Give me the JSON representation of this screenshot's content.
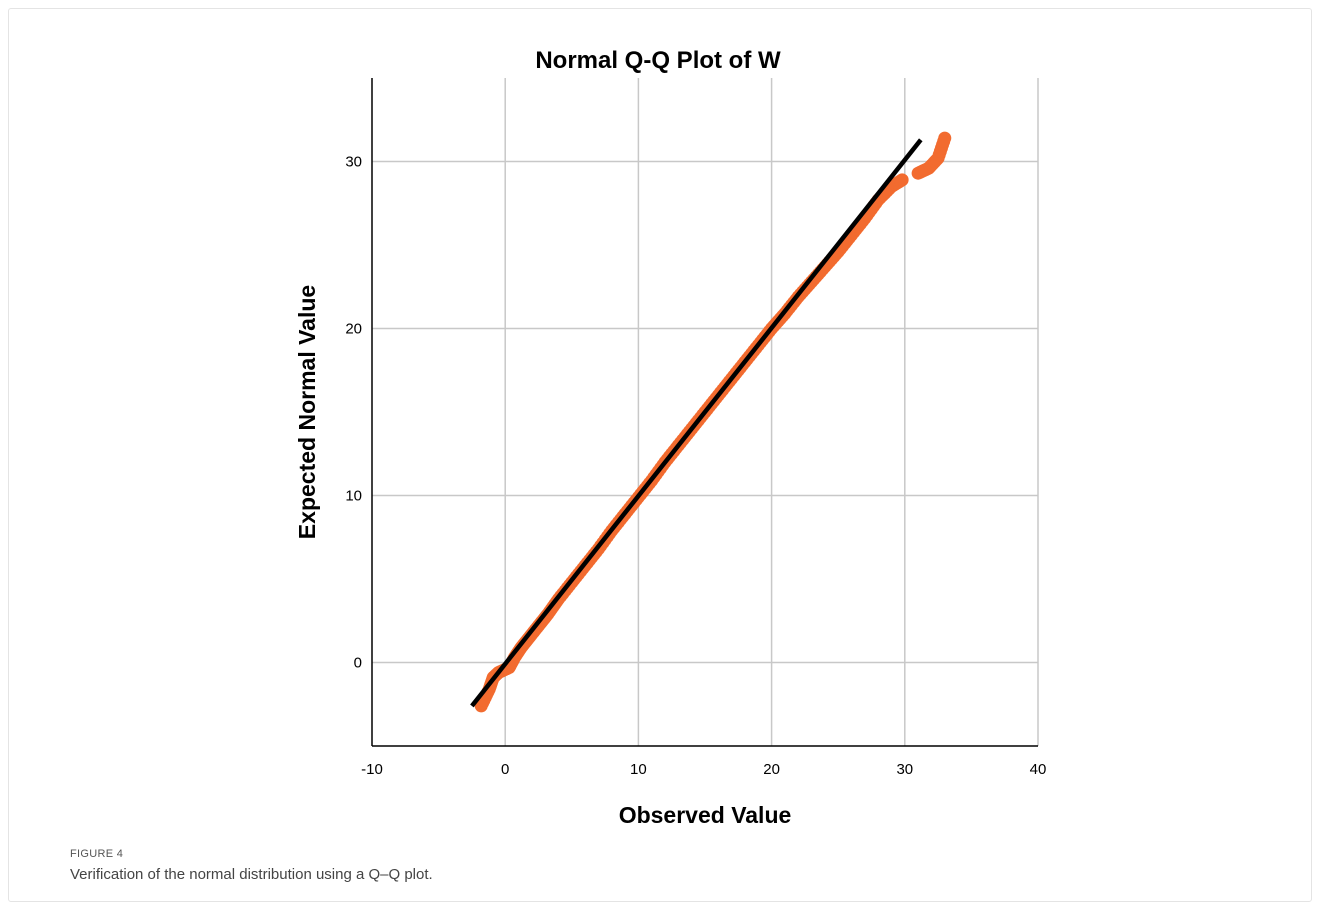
{
  "figure": {
    "label": "FIGURE 4",
    "caption": "Verification of the normal distribution using a Q–Q plot."
  },
  "chart_data": {
    "type": "scatter",
    "title": "Normal Q-Q Plot of W",
    "xlabel": "Observed Value",
    "ylabel": "Expected Normal Value",
    "xlim": [
      -10,
      40
    ],
    "ylim": [
      -5,
      35
    ],
    "x_ticks": [
      -10,
      0,
      10,
      20,
      30,
      40
    ],
    "y_ticks": [
      0,
      10,
      20,
      30
    ],
    "grid": true,
    "colors": {
      "points": "#f26b2f",
      "line": "#000000",
      "grid": "#c8c8c8"
    },
    "reference_line": {
      "from": [
        -2.5,
        -2.6
      ],
      "to": [
        31.2,
        31.3
      ]
    },
    "series": [
      {
        "points": [
          [
            -1.8,
            -2.6
          ],
          [
            -1.2,
            -1.6
          ],
          [
            -0.9,
            -0.9
          ],
          [
            -0.5,
            -0.6
          ],
          [
            0.3,
            -0.3
          ],
          [
            0.7,
            0.3
          ],
          [
            1.2,
            0.9
          ],
          [
            1.8,
            1.5
          ],
          [
            2.5,
            2.2
          ],
          [
            3.2,
            2.9
          ],
          [
            4.0,
            3.8
          ],
          [
            5.0,
            4.8
          ],
          [
            6.0,
            5.8
          ],
          [
            7.0,
            6.8
          ],
          [
            8.0,
            7.9
          ],
          [
            9.0,
            8.9
          ],
          [
            10.0,
            9.9
          ],
          [
            11.0,
            10.9
          ],
          [
            12.0,
            12.0
          ],
          [
            13.0,
            13.0
          ],
          [
            14.0,
            14.0
          ],
          [
            15.0,
            15.0
          ],
          [
            16.0,
            16.0
          ],
          [
            17.0,
            17.0
          ],
          [
            18.0,
            18.0
          ],
          [
            19.0,
            19.0
          ],
          [
            20.0,
            20.0
          ],
          [
            21.0,
            20.9
          ],
          [
            22.0,
            21.9
          ],
          [
            23.0,
            22.8
          ],
          [
            24.0,
            23.7
          ],
          [
            25.0,
            24.6
          ],
          [
            26.0,
            25.6
          ],
          [
            27.0,
            26.6
          ],
          [
            28.0,
            27.7
          ],
          [
            29.0,
            28.5
          ],
          [
            29.8,
            28.9
          ],
          [
            31.0,
            29.3
          ],
          [
            31.8,
            29.6
          ],
          [
            32.5,
            30.2
          ],
          [
            33.0,
            31.4
          ]
        ]
      }
    ]
  }
}
